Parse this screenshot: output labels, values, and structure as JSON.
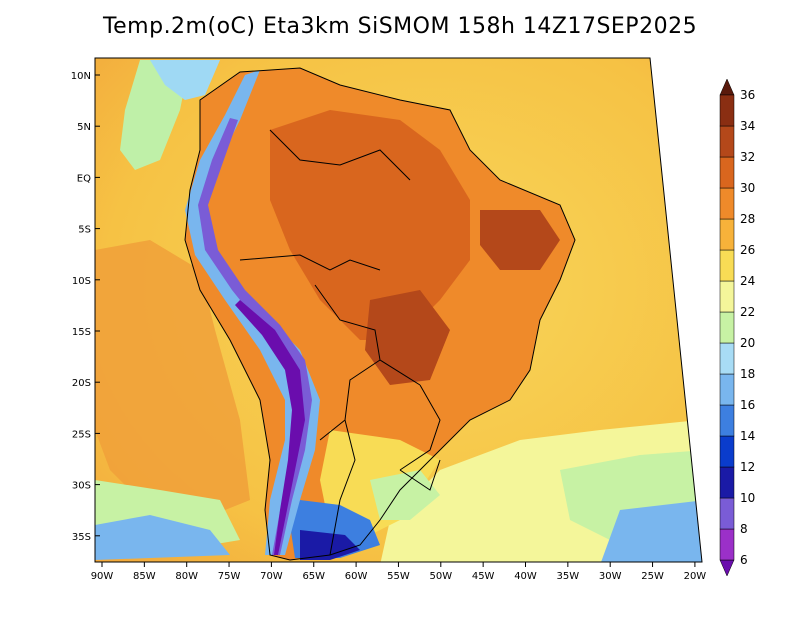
{
  "title": "Temp.2m(oC) Eta3km SiSMOM 158h 14Z17SEP2025",
  "map": {
    "lat_labels": [
      "10N",
      "5N",
      "EQ",
      "5S",
      "10S",
      "15S",
      "20S",
      "25S",
      "30S",
      "35S"
    ],
    "lon_labels": [
      "90W",
      "85W",
      "80W",
      "75W",
      "70W",
      "65W",
      "60W",
      "55W",
      "50W",
      "45W",
      "40W",
      "35W",
      "30W",
      "25W",
      "20W"
    ]
  },
  "colorbar": {
    "unit": "oC",
    "labels": [
      "6",
      "8",
      "10",
      "12",
      "14",
      "16",
      "18",
      "20",
      "22",
      "24",
      "26",
      "28",
      "30",
      "32",
      "34",
      "36"
    ],
    "colors": [
      "#6a0dad",
      "#9b30c8",
      "#7a5cd6",
      "#1a1aa6",
      "#0a3ccc",
      "#3d7fe0",
      "#79b6ee",
      "#a8dcf5",
      "#c7f2a4",
      "#f4f69a",
      "#f8dc55",
      "#f7b23a",
      "#ef8a2a",
      "#d9661e",
      "#b4481a",
      "#8a2e12",
      "#5a1a0c"
    ]
  }
}
